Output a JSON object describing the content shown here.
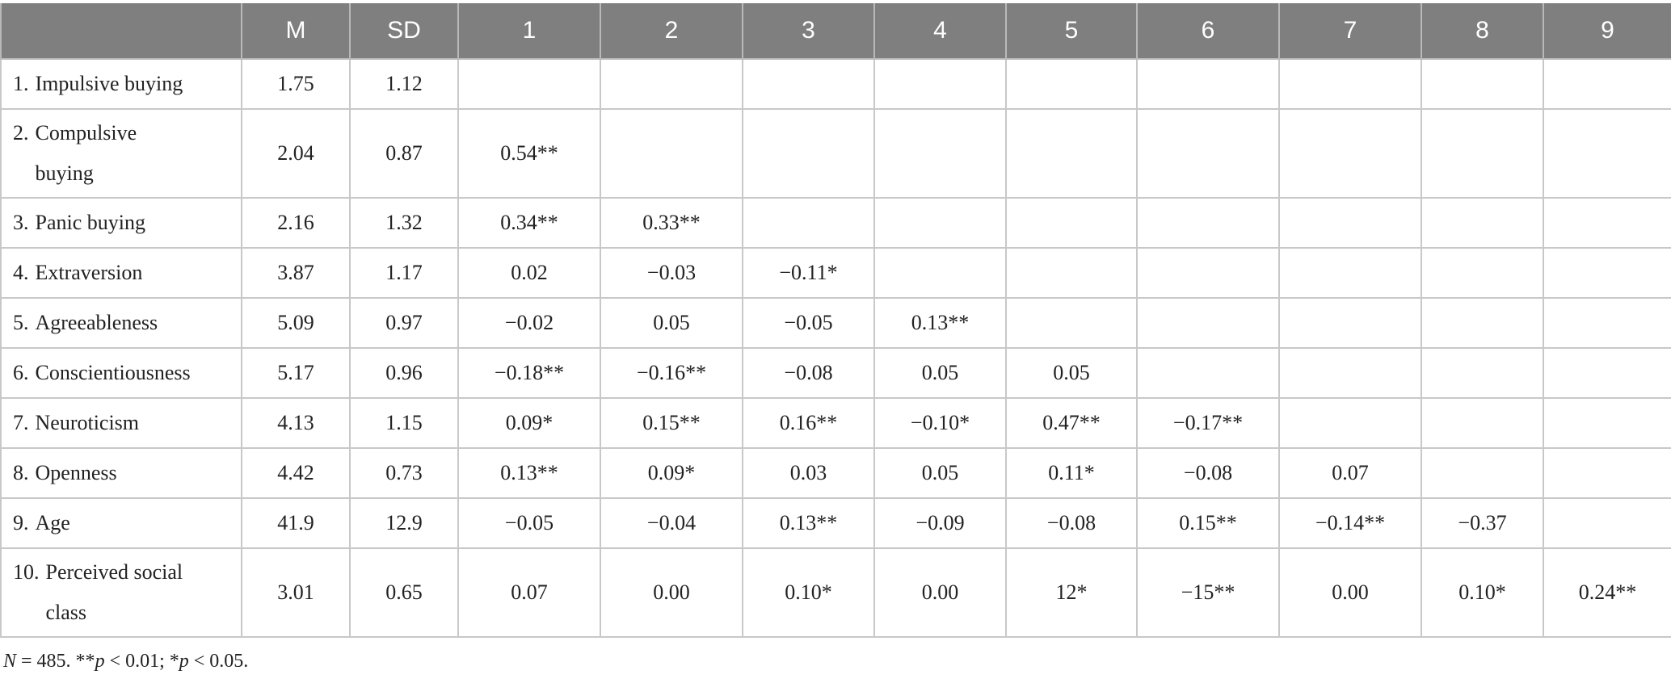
{
  "table": {
    "headers": [
      "",
      "M",
      "SD",
      "1",
      "2",
      "3",
      "4",
      "5",
      "6",
      "7",
      "8",
      "9"
    ],
    "rows": [
      {
        "num": "1.",
        "name": "Impulsive buying",
        "cells": [
          "1.75",
          "1.12",
          "",
          "",
          "",
          "",
          "",
          "",
          "",
          "",
          ""
        ]
      },
      {
        "num": "2.",
        "name": "Compulsive buying",
        "cells": [
          "2.04",
          "0.87",
          "0.54**",
          "",
          "",
          "",
          "",
          "",
          "",
          "",
          ""
        ]
      },
      {
        "num": "3.",
        "name": "Panic buying",
        "cells": [
          "2.16",
          "1.32",
          "0.34**",
          "0.33**",
          "",
          "",
          "",
          "",
          "",
          "",
          ""
        ]
      },
      {
        "num": "4.",
        "name": "Extraversion",
        "cells": [
          "3.87",
          "1.17",
          "0.02",
          "−0.03",
          "−0.11*",
          "",
          "",
          "",
          "",
          "",
          ""
        ]
      },
      {
        "num": "5.",
        "name": "Agreeableness",
        "cells": [
          "5.09",
          "0.97",
          "−0.02",
          "0.05",
          "−0.05",
          "0.13**",
          "",
          "",
          "",
          "",
          ""
        ]
      },
      {
        "num": "6.",
        "name": "Conscientiousness",
        "cells": [
          "5.17",
          "0.96",
          "−0.18**",
          "−0.16**",
          "−0.08",
          "0.05",
          "0.05",
          "",
          "",
          "",
          ""
        ]
      },
      {
        "num": "7.",
        "name": "Neuroticism",
        "cells": [
          "4.13",
          "1.15",
          "0.09*",
          "0.15**",
          "0.16**",
          "−0.10*",
          "0.47**",
          "−0.17**",
          "",
          "",
          ""
        ]
      },
      {
        "num": "8.",
        "name": "Openness",
        "cells": [
          "4.42",
          "0.73",
          "0.13**",
          "0.09*",
          "0.03",
          "0.05",
          "0.11*",
          "−0.08",
          "0.07",
          "",
          ""
        ]
      },
      {
        "num": "9.",
        "name": "Age",
        "cells": [
          "41.9",
          "12.9",
          "−0.05",
          "−0.04",
          "0.13**",
          "−0.09",
          "−0.08",
          "0.15**",
          "−0.14**",
          "−0.37",
          ""
        ]
      },
      {
        "num": "10.",
        "name": "Perceived social class",
        "cells": [
          "3.01",
          "0.65",
          "0.07",
          "0.00",
          "0.10*",
          "0.00",
          "12*",
          "−15**",
          "0.00",
          "0.10*",
          "0.24**"
        ]
      }
    ]
  },
  "note": {
    "n_label": "N",
    "n_value": " = 485. **",
    "p1": "p",
    "p1_text": " < 0.01; *",
    "p2": "p",
    "p2_text": " < 0.05."
  }
}
